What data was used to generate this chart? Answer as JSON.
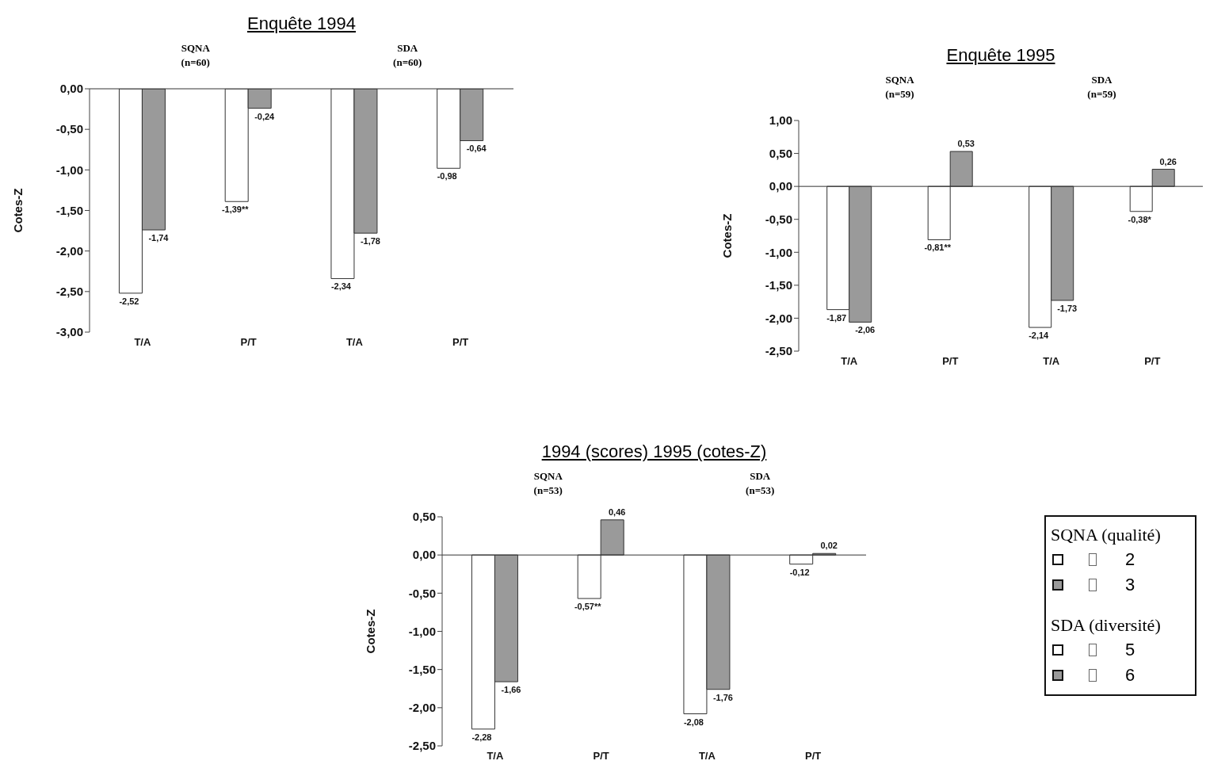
{
  "chart_data": [
    {
      "type": "bar",
      "title": "Enquête 1994",
      "ylabel": "Cotes-Z",
      "annotations": [
        "SQNA (n=60)",
        "SDA (n=60)"
      ],
      "categories": [
        "T/A",
        "P/T",
        "T/A",
        "P/T"
      ],
      "series": [
        {
          "color": "#ffffff",
          "values": [
            -2.52,
            -1.39,
            -2.34,
            -0.98
          ],
          "value_labels": [
            "-2,52",
            "-1,39**",
            "-2,34",
            "-0,98"
          ]
        },
        {
          "color": "#9a9a9a",
          "values": [
            -1.74,
            -0.24,
            -1.78,
            -0.64
          ],
          "value_labels": [
            "-1,74",
            "-0,24",
            "-1,78",
            "-0,64"
          ]
        }
      ],
      "ylim": [
        -3,
        0
      ],
      "yticks": [
        {
          "value": -3,
          "label": "-3,00"
        },
        {
          "value": -2.5,
          "label": "-2,50"
        },
        {
          "value": -2,
          "label": "-2,00"
        },
        {
          "value": -1.5,
          "label": "-1,50"
        },
        {
          "value": -1,
          "label": "-1,00"
        },
        {
          "value": -0.5,
          "label": "-0,50"
        },
        {
          "value": 0,
          "label": "0,00"
        }
      ]
    },
    {
      "type": "bar",
      "title": "Enquête 1995",
      "ylabel": "Cotes-Z",
      "annotations": [
        "SQNA (n=59)",
        "SDA (n=59)"
      ],
      "categories": [
        "T/A",
        "P/T",
        "T/A",
        "P/T"
      ],
      "series": [
        {
          "color": "#ffffff",
          "values": [
            -1.87,
            -0.81,
            -2.14,
            -0.38
          ],
          "value_labels": [
            "-1,87",
            "-0,81**",
            "-2,14",
            "-0,38*"
          ]
        },
        {
          "color": "#9a9a9a",
          "values": [
            -2.06,
            0.53,
            -1.73,
            0.26
          ],
          "value_labels": [
            "-2,06",
            "0,53",
            "-1,73",
            "0,26"
          ]
        }
      ],
      "ylim": [
        -2.5,
        1
      ],
      "yticks": [
        {
          "value": -2.5,
          "label": "-2,50"
        },
        {
          "value": -2,
          "label": "-2,00"
        },
        {
          "value": -1.5,
          "label": "-1,50"
        },
        {
          "value": -1,
          "label": "-1,00"
        },
        {
          "value": -0.5,
          "label": "-0,50"
        },
        {
          "value": 0,
          "label": "0,00"
        },
        {
          "value": 0.5,
          "label": "0,50"
        },
        {
          "value": 1,
          "label": "1,00"
        }
      ]
    },
    {
      "type": "bar",
      "title": "1994 (scores) 1995 (cotes-Z)",
      "ylabel": "Cotes-Z",
      "annotations": [
        "SQNA (n=53)",
        "SDA (n=53)"
      ],
      "categories": [
        "T/A",
        "P/T",
        "T/A",
        "P/T"
      ],
      "series": [
        {
          "color": "#ffffff",
          "values": [
            -2.28,
            -0.57,
            -2.08,
            -0.12
          ],
          "value_labels": [
            "-2,28",
            "-0,57**",
            "-2,08",
            "-0,12"
          ]
        },
        {
          "color": "#9a9a9a",
          "values": [
            -1.66,
            0.46,
            -1.76,
            0.02
          ],
          "value_labels": [
            "-1,66",
            "0,46",
            "-1,76",
            "0,02"
          ]
        }
      ],
      "ylim": [
        -2.5,
        0.5
      ],
      "yticks": [
        {
          "value": -2.5,
          "label": "-2,50"
        },
        {
          "value": -2,
          "label": "-2,00"
        },
        {
          "value": -1.5,
          "label": "-1,50"
        },
        {
          "value": -1,
          "label": "-1,00"
        },
        {
          "value": -0.5,
          "label": "-0,50"
        },
        {
          "value": 0,
          "label": "0,00"
        },
        {
          "value": 0.5,
          "label": "0,50"
        }
      ]
    },
    {
      "type": "other",
      "annotations": [
        "SQNA (qualité)",
        "2",
        "3",
        "SDA (diversité)",
        "5",
        "6"
      ]
    }
  ]
}
